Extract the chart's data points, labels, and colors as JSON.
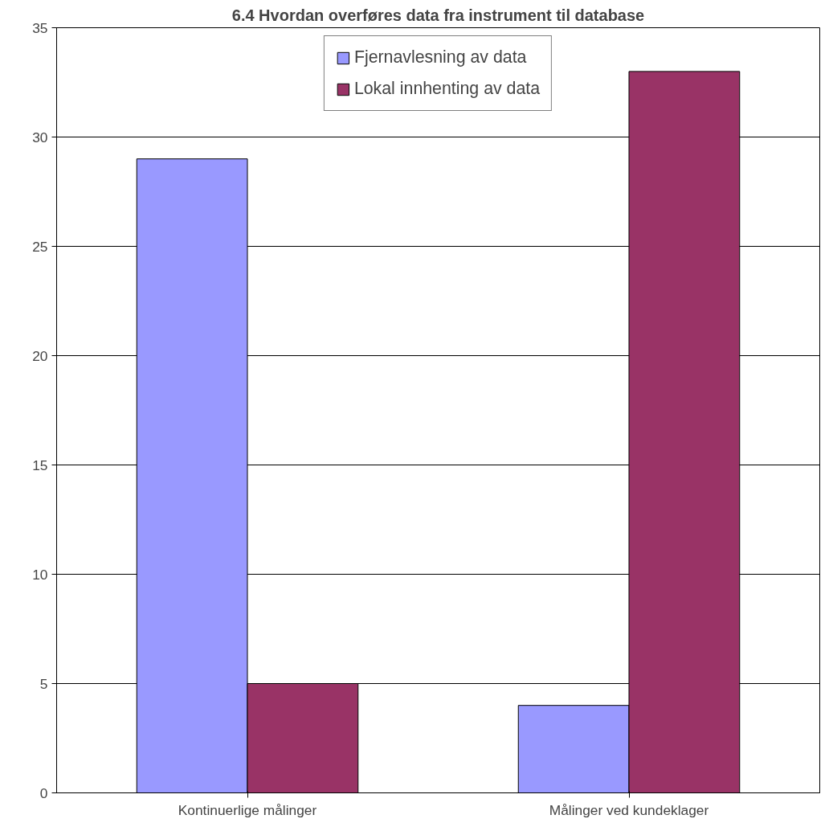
{
  "chart_data": {
    "type": "bar",
    "title": "6.4 Hvordan overføres data fra instrument til database",
    "categories": [
      "Kontinuerlige målinger",
      "Målinger ved kundeklager"
    ],
    "series": [
      {
        "name": "Fjernavlesning av data",
        "color": "#9999ff",
        "values": [
          29,
          4
        ]
      },
      {
        "name": "Lokal innhenting av data",
        "color": "#993366",
        "values": [
          5,
          33
        ]
      }
    ],
    "ylim": [
      0,
      35
    ],
    "yticks": [
      0,
      5,
      10,
      15,
      20,
      25,
      30,
      35
    ],
    "grid": "y",
    "legend": "top"
  }
}
